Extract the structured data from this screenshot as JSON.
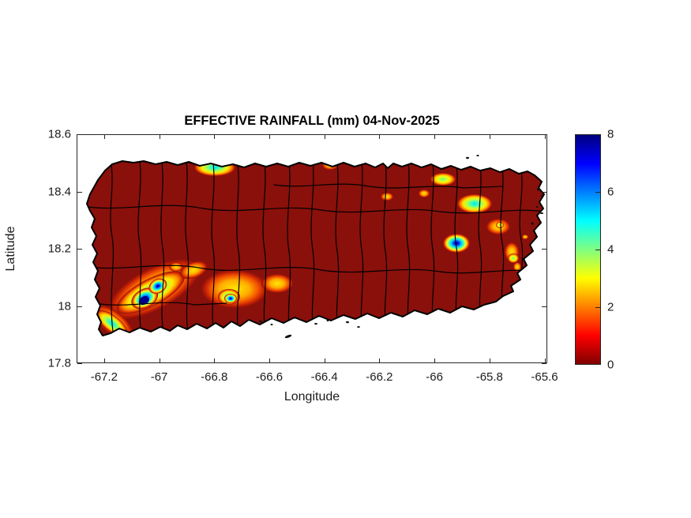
{
  "figure": {
    "background_color": "#ffffff"
  },
  "chart_data": {
    "type": "heatmap",
    "title": "EFFECTIVE RAINFALL (mm) 04-Nov-2025",
    "xlabel": "Longitude",
    "ylabel": "Latitude",
    "region": "Puerto Rico with municipal boundaries",
    "xlim": [
      -67.3,
      -65.59
    ],
    "ylim": [
      17.8,
      18.6
    ],
    "xticks": [
      -67.2,
      -67,
      -66.8,
      -66.6,
      -66.4,
      -66.2,
      -66,
      -65.8,
      -65.6
    ],
    "xtick_labels": [
      "-67.2",
      "-67",
      "-66.8",
      "-66.6",
      "-66.4",
      "-66.2",
      "-66",
      "-65.8",
      "-65.6"
    ],
    "yticks": [
      18.6,
      18.4,
      18.2,
      18,
      17.8
    ],
    "ytick_labels": [
      "18.6",
      "18.4",
      "18.2",
      "18",
      "17.8"
    ],
    "grid": false,
    "colorbar": {
      "min": 0,
      "max": 8,
      "ticks": [
        0,
        2,
        4,
        6,
        8
      ],
      "tick_labels": [
        "0",
        "2",
        "4",
        "6",
        "8"
      ],
      "colormap": "jet reversed (0 = dark red, 8 = dark blue)",
      "stops": [
        "#800000",
        "#ff0000",
        "#ff8000",
        "#ffff00",
        "#80ff80",
        "#00ffff",
        "#0080ff",
        "#0000ff",
        "#000080"
      ]
    },
    "background_value_mm": 0,
    "base_color": "#8a100b",
    "boundary_color": "#000000",
    "hotspots": [
      {
        "lon": -66.81,
        "lat": 18.48,
        "peak_mm": 5
      },
      {
        "lon": -66.39,
        "lat": 18.49,
        "peak_mm": 3
      },
      {
        "lon": -65.98,
        "lat": 18.44,
        "peak_mm": 4.5
      },
      {
        "lon": -66.18,
        "lat": 18.38,
        "peak_mm": 3
      },
      {
        "lon": -66.05,
        "lat": 18.39,
        "peak_mm": 3
      },
      {
        "lon": -65.86,
        "lat": 18.36,
        "peak_mm": 5.5
      },
      {
        "lon": -65.78,
        "lat": 18.28,
        "peak_mm": 4
      },
      {
        "lon": -65.92,
        "lat": 18.22,
        "peak_mm": 7
      },
      {
        "lon": -65.72,
        "lat": 18.19,
        "peak_mm": 3.5
      },
      {
        "lon": -65.71,
        "lat": 18.17,
        "peak_mm": 4
      },
      {
        "lon": -65.7,
        "lat": 18.14,
        "peak_mm": 3.5
      },
      {
        "lon": -65.67,
        "lat": 18.24,
        "peak_mm": 3
      },
      {
        "lon": -67.02,
        "lat": 18.06,
        "peak_mm": 8
      },
      {
        "lon": -66.9,
        "lat": 18.13,
        "peak_mm": 3.5
      },
      {
        "lon": -66.74,
        "lat": 18.05,
        "peak_mm": 7
      },
      {
        "lon": -66.57,
        "lat": 18.08,
        "peak_mm": 3.5
      },
      {
        "lon": -67.17,
        "lat": 17.97,
        "peak_mm": 5.5
      }
    ]
  }
}
